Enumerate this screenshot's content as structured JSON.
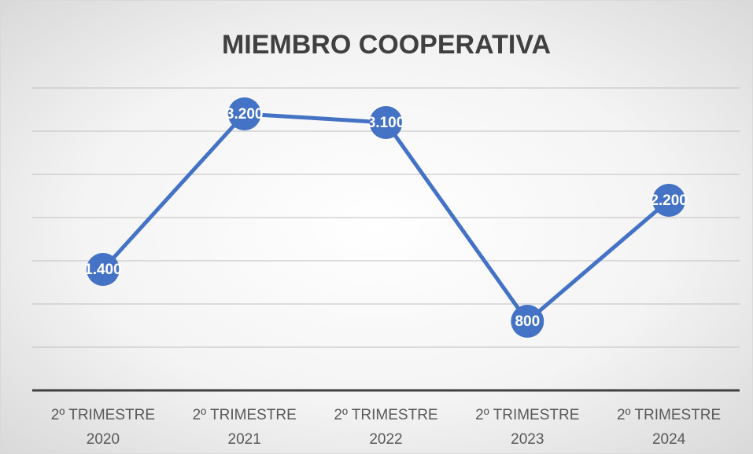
{
  "chart_data": {
    "type": "line",
    "title": "MIEMBRO COOPERATIVA",
    "categories": [
      "2º TRIMESTRE 2020",
      "2º TRIMESTRE 2021",
      "2º TRIMESTRE 2022",
      "2º TRIMESTRE 2023",
      "2º TRIMESTRE 2024"
    ],
    "series": [
      {
        "name": "MIEMBRO COOPERATIVA",
        "color": "#4472c4",
        "values": [
          1400,
          3200,
          3100,
          800,
          2200
        ],
        "value_labels": [
          "1.400",
          "3.200",
          "3.100",
          "800",
          "2.200"
        ]
      }
    ],
    "ylim": [
      0,
      3500
    ],
    "yticks": [
      0,
      500,
      1000,
      1500,
      2000,
      2500,
      3000,
      3500
    ],
    "grid": true
  }
}
